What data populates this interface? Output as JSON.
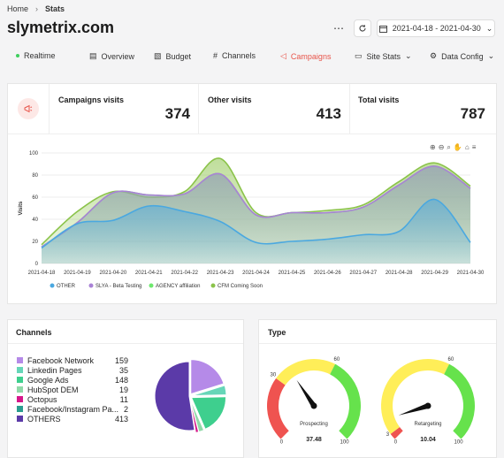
{
  "breadcrumb": {
    "home": "Home",
    "current": "Stats"
  },
  "site_title": "slymetrix.com",
  "header": {
    "more_icon": "⋯",
    "date_range": "2021-04-18 - 2021-04-30"
  },
  "nav": {
    "realtime": "Realtime",
    "overview": "Overview",
    "budget": "Budget",
    "channels": "Channels",
    "campaigns": "Campaigns",
    "site_stats": "Site Stats",
    "data_config": "Data Config"
  },
  "stats": {
    "campaigns_label": "Campaigns visits",
    "campaigns_value": "374",
    "other_label": "Other visits",
    "other_value": "413",
    "total_label": "Total visits",
    "total_value": "787"
  },
  "colors": {
    "other": "#4aa8e0",
    "slya": "#a982d6",
    "agency": "#6ee86e",
    "cfm": "#8bc34a",
    "accent": "#e8544a"
  },
  "chart_data": {
    "type": "area",
    "ylabel": "Visits",
    "ylim": [
      0,
      100
    ],
    "yticks": [
      "0",
      "20",
      "40",
      "60",
      "80",
      "100"
    ],
    "x": [
      "2021-04-18",
      "2021-04-19",
      "2021-04-20",
      "2021-04-21",
      "2021-04-22",
      "2021-04-23",
      "2021-04-24",
      "2021-04-25",
      "2021-04-26",
      "2021-04-27",
      "2021-04-28",
      "2021-04-29",
      "2021-04-30"
    ],
    "series": [
      {
        "name": "OTHER",
        "color": "#4aa8e0",
        "values": [
          14,
          36,
          39,
          52,
          47,
          38,
          19,
          20,
          22,
          26,
          29,
          58,
          19
        ]
      },
      {
        "name": "SLYA - Beta Testing",
        "color": "#a982d6",
        "values": [
          15,
          37,
          64,
          62,
          63,
          81,
          44,
          46,
          46,
          51,
          71,
          88,
          68
        ]
      },
      {
        "name": "AGENCY affiliation",
        "color": "#6ee86e",
        "values": [
          15,
          37,
          64,
          62,
          63,
          81,
          44,
          46,
          46,
          51,
          71,
          88,
          68
        ]
      },
      {
        "name": "CFM Coming Soon",
        "color": "#8bc34a",
        "values": [
          17,
          47,
          65,
          60,
          65,
          95,
          46,
          46,
          48,
          53,
          74,
          91,
          70
        ]
      }
    ]
  },
  "channels": {
    "title": "Channels",
    "items": [
      {
        "label": "Facebook Network",
        "value": "159",
        "color": "#b58ae8"
      },
      {
        "label": "Linkedin Pages",
        "value": "35",
        "color": "#66d6b8"
      },
      {
        "label": "Google Ads",
        "value": "148",
        "color": "#3ecf8e"
      },
      {
        "label": "HubSpot DEM",
        "value": "19",
        "color": "#8fd9a8"
      },
      {
        "label": "Octopus",
        "value": "11",
        "color": "#d6168a"
      },
      {
        "label": "Facebook/Instagram Pa...",
        "value": "2",
        "color": "#2a9d8f"
      },
      {
        "label": "OTHERS",
        "value": "413",
        "color": "#5b3aa8"
      }
    ]
  },
  "type": {
    "title": "Type",
    "gauges": [
      {
        "name": "Prospecting",
        "value": 37.48,
        "display": "37.48",
        "ticks": [
          "0",
          "30",
          "60",
          "100"
        ]
      },
      {
        "name": "Retargeting",
        "value": 10.04,
        "display": "10.04",
        "ticks": [
          "0",
          "3",
          "60",
          "100"
        ]
      }
    ]
  }
}
